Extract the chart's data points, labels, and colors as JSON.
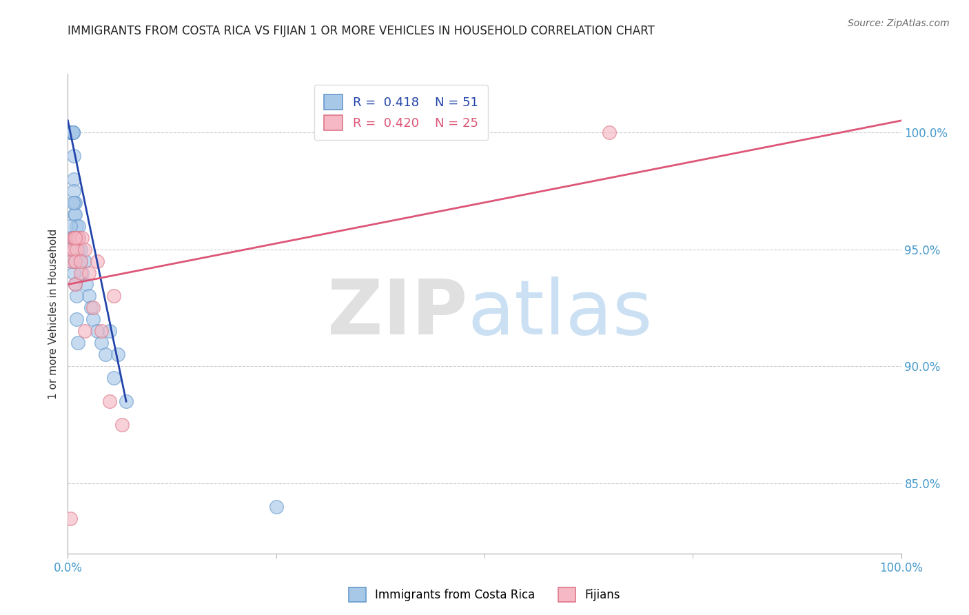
{
  "title": "IMMIGRANTS FROM COSTA RICA VS FIJIAN 1 OR MORE VEHICLES IN HOUSEHOLD CORRELATION CHART",
  "source": "Source: ZipAtlas.com",
  "ylabel": "1 or more Vehicles in Household",
  "xlabel": "",
  "blue_label": "Immigrants from Costa Rica",
  "pink_label": "Fijians",
  "blue_R": 0.418,
  "blue_N": 51,
  "pink_R": 0.42,
  "pink_N": 25,
  "xlim": [
    0.0,
    100.0
  ],
  "ylim": [
    82.0,
    102.5
  ],
  "yticks": [
    85.0,
    90.0,
    95.0,
    100.0
  ],
  "ytick_labels": [
    "85.0%",
    "90.0%",
    "95.0%",
    "100.0%"
  ],
  "xtick_labels": [
    "0.0%",
    "100.0%"
  ],
  "blue_color": "#A8C8E8",
  "pink_color": "#F5B8C4",
  "blue_edge_color": "#6699CC",
  "pink_edge_color": "#DD7788",
  "blue_line_color": "#2244AA",
  "pink_line_color": "#DD5577",
  "legend_text_blue": "#2244AA",
  "legend_text_pink": "#DD5577",
  "background_color": "#FFFFFF",
  "blue_scatter_x": [
    0.3,
    0.4,
    0.4,
    0.4,
    0.5,
    0.5,
    0.5,
    0.6,
    0.6,
    0.6,
    0.7,
    0.7,
    0.7,
    0.8,
    0.8,
    0.9,
    0.9,
    1.0,
    1.0,
    1.1,
    1.2,
    1.3,
    1.3,
    1.5,
    1.5,
    1.7,
    2.0,
    2.2,
    2.5,
    2.8,
    3.0,
    3.5,
    4.0,
    4.5,
    5.0,
    5.5,
    6.0,
    7.0,
    0.3,
    0.4,
    0.5,
    0.5,
    0.6,
    0.6,
    0.7,
    0.8,
    0.9,
    1.0,
    1.0,
    1.2,
    25.0
  ],
  "blue_scatter_y": [
    100.0,
    100.0,
    100.0,
    100.0,
    100.0,
    100.0,
    100.0,
    100.0,
    100.0,
    100.0,
    99.0,
    98.0,
    97.5,
    97.0,
    96.5,
    96.5,
    97.0,
    96.0,
    95.5,
    95.5,
    95.0,
    95.5,
    96.0,
    95.0,
    94.5,
    94.0,
    94.5,
    93.5,
    93.0,
    92.5,
    92.0,
    91.5,
    91.0,
    90.5,
    91.5,
    89.5,
    90.5,
    88.5,
    96.0,
    95.5,
    94.5,
    95.0,
    97.0,
    95.5,
    94.0,
    94.5,
    93.5,
    92.0,
    93.0,
    91.0,
    84.0
  ],
  "pink_scatter_x": [
    0.3,
    0.4,
    0.5,
    0.6,
    0.7,
    0.8,
    0.9,
    1.0,
    1.1,
    1.3,
    1.5,
    1.7,
    2.0,
    2.5,
    3.0,
    3.5,
    4.0,
    5.0,
    5.5,
    6.5,
    0.9,
    0.9,
    1.5,
    2.0,
    65.0
  ],
  "pink_scatter_y": [
    83.5,
    95.0,
    94.5,
    95.5,
    95.0,
    95.5,
    93.5,
    95.0,
    95.5,
    95.5,
    94.0,
    95.5,
    95.0,
    94.0,
    92.5,
    94.5,
    91.5,
    88.5,
    93.0,
    87.5,
    95.5,
    94.5,
    94.5,
    91.5,
    100.0
  ],
  "blue_trend_x": [
    0.0,
    7.0
  ],
  "blue_trend_y": [
    100.5,
    88.5
  ],
  "pink_trend_x": [
    0.0,
    100.0
  ],
  "pink_trend_y": [
    93.5,
    100.5
  ],
  "mid_xticks": [
    25.0,
    50.0,
    75.0
  ]
}
